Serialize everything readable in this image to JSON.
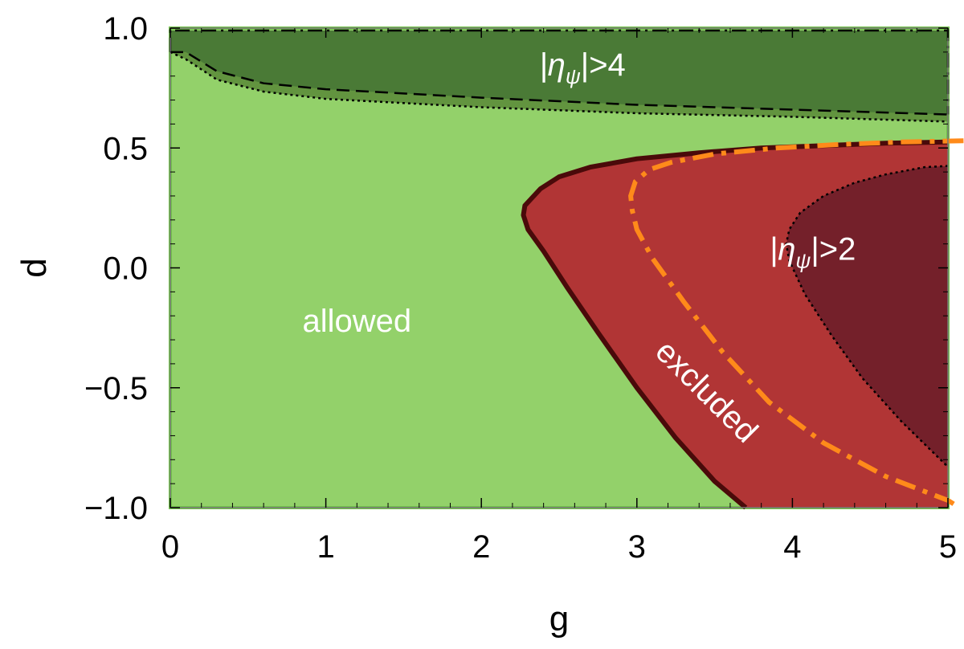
{
  "chart_data": {
    "type": "area",
    "title": "",
    "xlabel": "g",
    "ylabel": "d",
    "xlim": [
      0,
      5
    ],
    "ylim": [
      -1,
      1
    ],
    "x_ticks": [
      0,
      1,
      2,
      3,
      4,
      5
    ],
    "x_tick_labels": [
      "0",
      "1",
      "2",
      "3",
      "4",
      "5"
    ],
    "y_ticks": [
      1.0,
      0.5,
      0.0,
      -0.5,
      -1.0
    ],
    "y_tick_labels": [
      "1.0",
      "0.5",
      "0.0",
      "−0.5",
      "−1.0"
    ],
    "colors": {
      "allowed": "#93d16a",
      "allowed_edge": "#72c24a",
      "top_band": "#4a7a36",
      "top_band_light": "#62943f",
      "excluded": "#b13535",
      "excluded_edge": "#4a0a0a",
      "inner": "#74202a",
      "orange": "#ff8a1a"
    },
    "regions": [
      {
        "name": "allowed",
        "label": "allowed",
        "label_anchor": [
          1.2,
          -0.22
        ]
      },
      {
        "name": "eta_gt_4",
        "label": "|ηψ|>4",
        "label_main": "|η",
        "label_sub": "ψ",
        "label_tail": "|>4",
        "label_anchor": [
          2.65,
          0.85
        ],
        "upper_boundary": [
          [
            0,
            0.99
          ],
          [
            5,
            0.99
          ]
        ],
        "lower_boundary_dashed": [
          [
            0,
            0.9
          ],
          [
            0.1,
            0.9
          ],
          [
            0.3,
            0.82
          ],
          [
            0.6,
            0.77
          ],
          [
            1.0,
            0.745
          ],
          [
            2.0,
            0.71
          ],
          [
            3.0,
            0.68
          ],
          [
            4.0,
            0.66
          ],
          [
            5.0,
            0.64
          ]
        ],
        "lower_boundary_dotted": [
          [
            0,
            0.9
          ],
          [
            0.1,
            0.87
          ],
          [
            0.3,
            0.785
          ],
          [
            0.6,
            0.735
          ],
          [
            1.0,
            0.705
          ],
          [
            2.0,
            0.67
          ],
          [
            3.0,
            0.645
          ],
          [
            4.0,
            0.63
          ],
          [
            5.0,
            0.61
          ]
        ]
      },
      {
        "name": "excluded",
        "label": "excluded",
        "label_anchor": [
          3.4,
          -0.5
        ],
        "label_rotation_deg": 45,
        "boundary": [
          [
            5.0,
            0.525
          ],
          [
            4.6,
            0.52
          ],
          [
            4.2,
            0.51
          ],
          [
            3.8,
            0.5
          ],
          [
            3.4,
            0.48
          ],
          [
            3.0,
            0.455
          ],
          [
            2.7,
            0.42
          ],
          [
            2.5,
            0.38
          ],
          [
            2.38,
            0.33
          ],
          [
            2.28,
            0.26
          ],
          [
            2.27,
            0.22
          ],
          [
            2.3,
            0.16
          ],
          [
            2.4,
            0.07
          ],
          [
            2.55,
            -0.08
          ],
          [
            2.75,
            -0.27
          ],
          [
            3.0,
            -0.5
          ],
          [
            3.25,
            -0.71
          ],
          [
            3.5,
            -0.89
          ],
          [
            3.7,
            -1.0
          ]
        ]
      },
      {
        "name": "eta_gt_2",
        "label": "|ηψ|>2",
        "label_main": "|η",
        "label_sub": "ψ",
        "label_tail": "|>2",
        "label_anchor": [
          4.13,
          0.08
        ],
        "boundary": [
          [
            5.0,
            0.425
          ],
          [
            4.85,
            0.42
          ],
          [
            4.6,
            0.39
          ],
          [
            4.4,
            0.355
          ],
          [
            4.2,
            0.3
          ],
          [
            4.05,
            0.23
          ],
          [
            3.98,
            0.16
          ],
          [
            3.96,
            0.1
          ],
          [
            3.98,
            0.03
          ],
          [
            4.08,
            -0.11
          ],
          [
            4.25,
            -0.28
          ],
          [
            4.45,
            -0.46
          ],
          [
            4.7,
            -0.64
          ],
          [
            5.0,
            -0.83
          ]
        ]
      }
    ],
    "series": [
      {
        "style": "dash-dot",
        "color": "#ff8a1a",
        "points": [
          [
            5.1,
            0.53
          ],
          [
            4.7,
            0.525
          ],
          [
            4.3,
            0.515
          ],
          [
            3.9,
            0.5
          ],
          [
            3.5,
            0.475
          ],
          [
            3.22,
            0.44
          ],
          [
            3.08,
            0.41
          ],
          [
            2.99,
            0.36
          ],
          [
            2.96,
            0.3
          ],
          [
            2.97,
            0.24
          ],
          [
            3.0,
            0.16
          ],
          [
            3.1,
            0.04
          ],
          [
            3.3,
            -0.14
          ],
          [
            3.55,
            -0.35
          ],
          [
            3.85,
            -0.56
          ],
          [
            4.2,
            -0.73
          ],
          [
            4.6,
            -0.87
          ],
          [
            5.0,
            -0.97
          ],
          [
            5.05,
            -0.99
          ]
        ]
      }
    ]
  }
}
